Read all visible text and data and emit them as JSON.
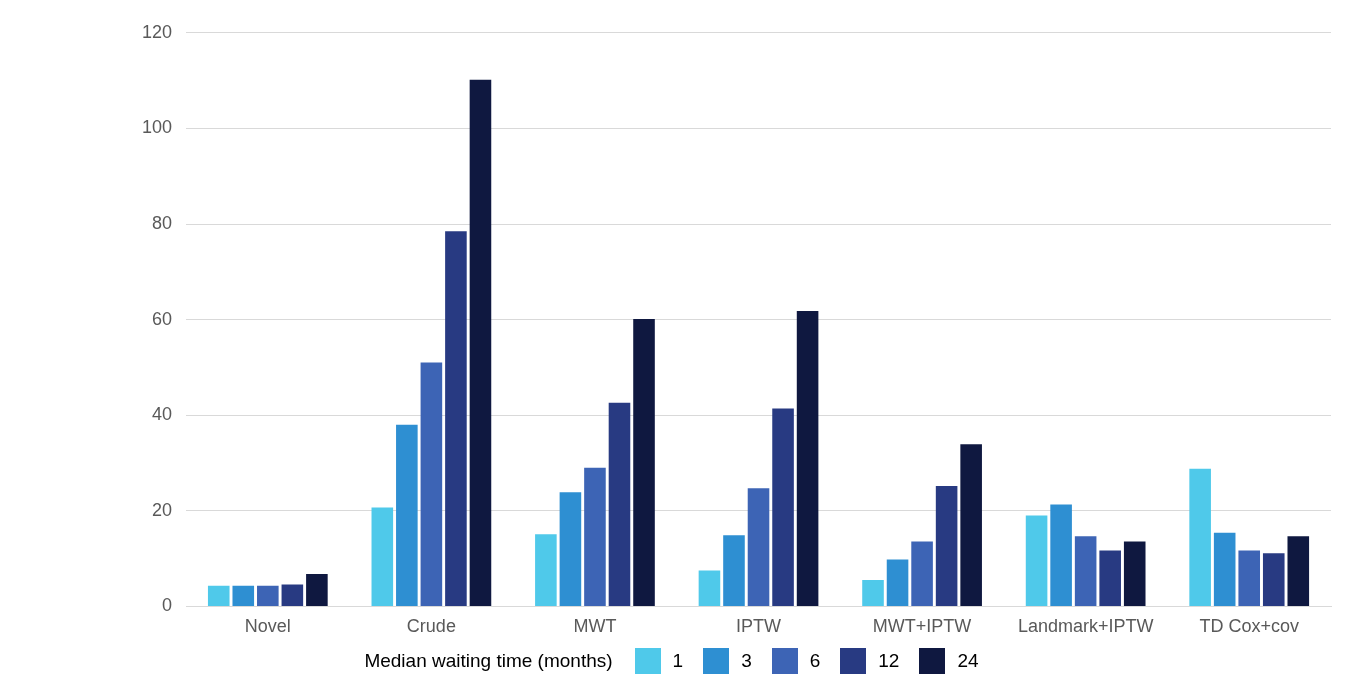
{
  "chart_data": {
    "type": "bar",
    "categories": [
      "Novel",
      "Crude",
      "MWT",
      "IPTW",
      "MWT+IPTW",
      "Landmark+IPTW",
      "TD Cox+cov"
    ],
    "series": [
      {
        "name": "1",
        "color": "#4fc9ea",
        "values": [
          4.3,
          20.7,
          15.1,
          7.5,
          5.5,
          19,
          28.8
        ]
      },
      {
        "name": "3",
        "color": "#2e8fd2",
        "values": [
          4.3,
          38,
          23.9,
          14.9,
          9.8,
          21.3,
          15.4
        ]
      },
      {
        "name": "6",
        "color": "#3d64b5",
        "values": [
          4.3,
          51,
          29,
          24.7,
          13.6,
          14.7,
          11.7
        ]
      },
      {
        "name": "12",
        "color": "#283a82",
        "values": [
          4.6,
          78.5,
          42.6,
          41.4,
          25.2,
          11.7,
          11.1
        ]
      },
      {
        "name": "24",
        "color": "#0f1840",
        "values": [
          6.8,
          110.2,
          60.1,
          61.8,
          33.9,
          13.6,
          14.7
        ]
      }
    ],
    "ylim": [
      0,
      120
    ],
    "yticks": [
      0,
      20,
      40,
      60,
      80,
      100,
      120
    ],
    "grid": "y",
    "legend": "bottom",
    "legend_title": "Median waiting time (months)"
  }
}
